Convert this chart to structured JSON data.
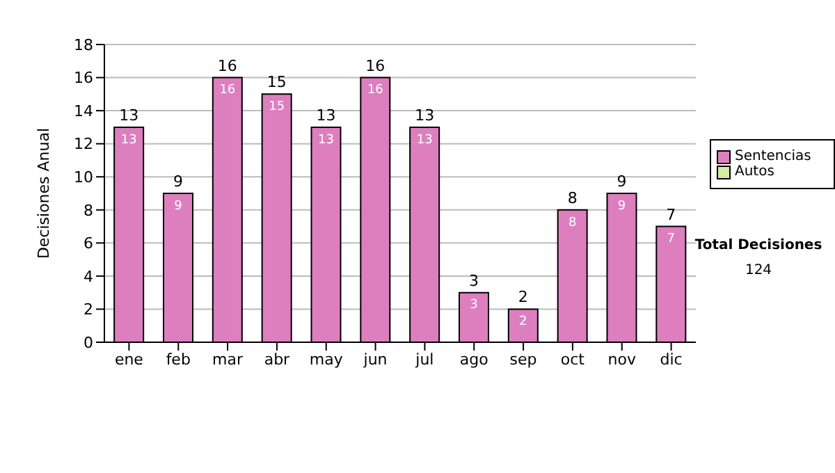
{
  "chart_data": {
    "type": "bar",
    "ylabel": "Decisiones Anual",
    "categories": [
      "ene",
      "feb",
      "mar",
      "abr",
      "may",
      "jun",
      "jul",
      "ago",
      "sep",
      "oct",
      "nov",
      "dic"
    ],
    "series": [
      {
        "name": "Sentencias",
        "color": "#dd7fbf",
        "values": [
          13,
          9,
          16,
          15,
          13,
          16,
          13,
          3,
          2,
          8,
          9,
          7
        ]
      },
      {
        "name": "Autos",
        "color": "#d4eaa0",
        "values": [
          null,
          null,
          null,
          null,
          null,
          null,
          null,
          null,
          null,
          null,
          null,
          null
        ]
      }
    ],
    "stacked": true,
    "data_labels": true,
    "totals": [
      "13",
      "9",
      "16",
      "15",
      "13",
      "16",
      "13",
      "3",
      "2",
      "8",
      "9",
      "7"
    ],
    "ylim": [
      0,
      18
    ],
    "yticks": [
      0,
      2,
      4,
      6,
      8,
      10,
      12,
      14,
      16,
      18
    ],
    "grid": "y",
    "legend": "right",
    "annotations": [
      "Total Decisiones",
      "124"
    ]
  }
}
